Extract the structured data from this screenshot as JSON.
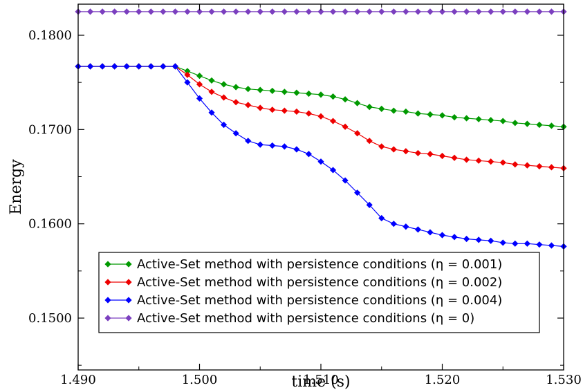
{
  "chart_data": {
    "type": "line",
    "title": "",
    "xlabel": "time (s)",
    "ylabel": "Energy",
    "xlim": [
      1.49,
      1.53
    ],
    "ylim": [
      0.1445,
      0.1833
    ],
    "x_ticks": [
      1.49,
      1.5,
      1.51,
      1.52,
      1.53
    ],
    "x_tick_labels": [
      "1.490",
      "1.500",
      "1.510",
      "1.520",
      "1.530"
    ],
    "y_ticks": [
      0.15,
      0.16,
      0.17,
      0.18
    ],
    "y_tick_labels": [
      "0.1500",
      "0.1600",
      "0.1700",
      "0.1800"
    ],
    "grid": false,
    "legend_position": "bottom-center",
    "x": [
      1.49,
      1.491,
      1.492,
      1.493,
      1.494,
      1.495,
      1.496,
      1.497,
      1.498,
      1.499,
      1.5,
      1.501,
      1.502,
      1.503,
      1.504,
      1.505,
      1.506,
      1.507,
      1.508,
      1.509,
      1.51,
      1.511,
      1.512,
      1.513,
      1.514,
      1.515,
      1.516,
      1.517,
      1.518,
      1.519,
      1.52,
      1.521,
      1.522,
      1.523,
      1.524,
      1.525,
      1.526,
      1.527,
      1.528,
      1.529,
      1.53
    ],
    "series": [
      {
        "name": "Active-Set method with persistence conditions (η = 0.001)",
        "color": "#009900",
        "values": [
          0.1767,
          0.1767,
          0.1767,
          0.1767,
          0.1767,
          0.1767,
          0.1767,
          0.1767,
          0.1767,
          0.1762,
          0.1757,
          0.1752,
          0.1748,
          0.1745,
          0.1743,
          0.1742,
          0.1741,
          0.174,
          0.1739,
          0.1738,
          0.1737,
          0.1735,
          0.1732,
          0.1728,
          0.1724,
          0.1722,
          0.172,
          0.1719,
          0.1717,
          0.1716,
          0.1715,
          0.1713,
          0.1712,
          0.1711,
          0.171,
          0.1709,
          0.1707,
          0.1706,
          0.1705,
          0.1704,
          0.1703
        ]
      },
      {
        "name": "Active-Set method with persistence conditions (η = 0.002)",
        "color": "#ee0000",
        "values": [
          0.1767,
          0.1767,
          0.1767,
          0.1767,
          0.1767,
          0.1767,
          0.1767,
          0.1767,
          0.1767,
          0.1758,
          0.1748,
          0.174,
          0.1734,
          0.1729,
          0.1726,
          0.1723,
          0.1721,
          0.172,
          0.1719,
          0.1717,
          0.1714,
          0.1709,
          0.1703,
          0.1696,
          0.1688,
          0.1682,
          0.1679,
          0.1677,
          0.1675,
          0.1674,
          0.1672,
          0.167,
          0.1668,
          0.1667,
          0.1666,
          0.1665,
          0.1663,
          0.1662,
          0.1661,
          0.166,
          0.1659
        ]
      },
      {
        "name": "Active-Set method with persistence conditions (η = 0.004)",
        "color": "#0000ff",
        "values": [
          0.1767,
          0.1767,
          0.1767,
          0.1767,
          0.1767,
          0.1767,
          0.1767,
          0.1767,
          0.1767,
          0.175,
          0.1733,
          0.1718,
          0.1705,
          0.1696,
          0.1688,
          0.1684,
          0.1683,
          0.1682,
          0.1679,
          0.1674,
          0.1666,
          0.1657,
          0.1646,
          0.1633,
          0.162,
          0.1606,
          0.16,
          0.1597,
          0.1594,
          0.1591,
          0.1588,
          0.1586,
          0.1584,
          0.1583,
          0.1582,
          0.158,
          0.1579,
          0.1579,
          0.1578,
          0.1577,
          0.1576
        ]
      },
      {
        "name": "Active-Set method with persistence conditions (η = 0)",
        "color": "#7b3fbf",
        "values": [
          0.1825,
          0.1825,
          0.1825,
          0.1825,
          0.1825,
          0.1825,
          0.1825,
          0.1825,
          0.1825,
          0.1825,
          0.1825,
          0.1825,
          0.1825,
          0.1825,
          0.1825,
          0.1825,
          0.1825,
          0.1825,
          0.1825,
          0.1825,
          0.1825,
          0.1825,
          0.1825,
          0.1825,
          0.1825,
          0.1825,
          0.1825,
          0.1825,
          0.1825,
          0.1825,
          0.1825,
          0.1825,
          0.1825,
          0.1825,
          0.1825,
          0.1825,
          0.1825,
          0.1825,
          0.1825,
          0.1825,
          0.1825
        ]
      }
    ]
  }
}
